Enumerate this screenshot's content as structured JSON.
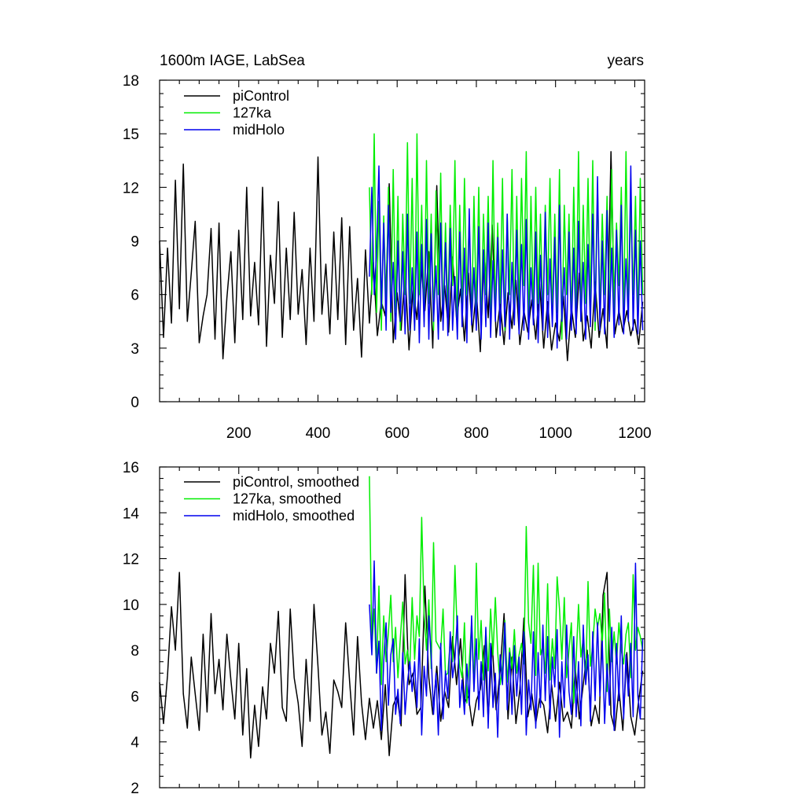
{
  "chart_data": [
    {
      "type": "line",
      "title_left": "1600m IAGE, LabSea",
      "title_right": "years",
      "xlabel": "",
      "ylabel": "",
      "xlim": [
        0,
        1225
      ],
      "ylim": [
        0,
        18
      ],
      "yticks": [
        0,
        3,
        6,
        9,
        12,
        15,
        18
      ],
      "xticks": [
        200,
        400,
        600,
        800,
        1000,
        1200
      ],
      "show_x_tick_labels": true,
      "legend_position": "top-left",
      "series": [
        {
          "name": "piControl",
          "color": "#000000",
          "x_start": 0,
          "x_step": 10,
          "values": [
            9.0,
            3.6,
            8.6,
            4.4,
            12.4,
            5.2,
            13.3,
            4.5,
            7.2,
            10.1,
            3.3,
            4.8,
            6.0,
            9.7,
            3.5,
            10.0,
            2.4,
            5.8,
            8.4,
            3.3,
            9.6,
            4.6,
            12.0,
            4.8,
            7.8,
            4.3,
            12.0,
            3.1,
            8.2,
            5.5,
            11.2,
            3.6,
            8.6,
            4.6,
            10.6,
            4.9,
            7.4,
            3.2,
            8.6,
            4.5,
            13.7,
            4.9,
            7.7,
            3.8,
            9.5,
            4.6,
            10.3,
            3.2,
            9.8,
            4.0,
            6.9,
            2.5,
            8.5,
            4.4,
            7.8,
            3.7,
            5.6,
            4.8,
            12.2,
            3.3,
            6.1,
            4.0,
            7.3,
            2.9,
            6.4,
            4.6,
            7.8,
            5.1,
            8.4,
            3.0,
            12.1,
            4.5,
            6.5,
            3.9,
            8.1,
            4.6,
            6.3,
            3.4,
            7.2,
            3.9,
            6.2,
            2.8,
            8.4,
            4.7,
            9.9,
            3.6,
            5.5,
            3.2,
            6.1,
            4.1,
            6.8,
            3.2,
            5.1,
            3.9,
            5.7,
            3.5,
            6.6,
            3.0,
            5.6,
            2.9,
            4.4,
            3.4,
            5.9,
            2.3,
            5.3,
            3.6,
            7.2,
            3.4,
            4.8,
            3.0,
            6.7,
            3.6,
            5.2,
            3.0,
            14.0,
            3.8,
            5.1,
            3.9,
            5.1,
            3.7,
            4.6,
            3.2,
            5.6
          ]
        },
        {
          "name": "127ka",
          "color": "#00ee00",
          "x_start": 530,
          "x_step": 6,
          "values": [
            12.0,
            6.0,
            15.0,
            5.0,
            11.2,
            4.0,
            10.4,
            5.2,
            12.0,
            4.5,
            13.0,
            5.0,
            11.5,
            4.0,
            10.5,
            6.0,
            14.5,
            5.5,
            12.5,
            4.0,
            15.0,
            6.0,
            11.0,
            4.5,
            13.5,
            5.5,
            10.5,
            4.0,
            11.8,
            6.0,
            12.8,
            4.5,
            10.0,
            5.0,
            11.0,
            6.5,
            13.5,
            4.5,
            11.0,
            5.0,
            12.5,
            6.0,
            10.2,
            4.5,
            11.5,
            5.0,
            12.0,
            4.0,
            10.5,
            6.0,
            11.5,
            4.5,
            13.5,
            5.0,
            10.0,
            5.5,
            12.5,
            4.0,
            10.5,
            6.0,
            13.0,
            4.5,
            11.5,
            5.0,
            12.5,
            6.5,
            14.0,
            4.0,
            11.5,
            5.0,
            12.0,
            5.5,
            10.5,
            4.5,
            11.0,
            6.0,
            12.5,
            4.5,
            10.5,
            5.0,
            13.0,
            3.5,
            11.0,
            6.0,
            10.5,
            4.5,
            12.0,
            5.0,
            14.0,
            4.5,
            11.0,
            5.5,
            12.5,
            5.0,
            13.5,
            4.0,
            12.0,
            5.0,
            10.5,
            6.0,
            11.5,
            4.5,
            13.0,
            5.0,
            10.0,
            6.5,
            12.0,
            4.5,
            14.0,
            5.0,
            11.0,
            6.0,
            11.5,
            4.5,
            12.5,
            6.0
          ]
        },
        {
          "name": "midHolo",
          "color": "#0000ee",
          "x_start": 530,
          "x_step": 6,
          "values": [
            7.0,
            12.0,
            6.0,
            8.3,
            13.2,
            5.2,
            10.0,
            4.0,
            11.0,
            5.0,
            7.8,
            3.5,
            9.0,
            4.5,
            8.4,
            3.8,
            10.5,
            4.0,
            7.5,
            4.0,
            9.5,
            3.3,
            8.8,
            4.2,
            10.2,
            3.5,
            9.4,
            4.5,
            7.6,
            3.5,
            10.0,
            4.0,
            8.9,
            3.7,
            9.7,
            4.0,
            7.0,
            3.5,
            9.5,
            4.2,
            8.6,
            3.3,
            10.8,
            4.3,
            7.5,
            4.0,
            9.8,
            3.5,
            8.5,
            4.2,
            10.0,
            3.6,
            7.9,
            4.5,
            9.2,
            3.7,
            8.5,
            4.2,
            10.5,
            3.5,
            7.8,
            4.3,
            9.6,
            3.8,
            8.8,
            4.0,
            10.2,
            3.5,
            7.5,
            4.3,
            9.5,
            3.3,
            8.2,
            4.0,
            10.6,
            3.6,
            8.0,
            4.2,
            9.2,
            3.0,
            11.0,
            4.5,
            7.5,
            3.5,
            9.5,
            4.0,
            8.6,
            3.8,
            10.1,
            4.5,
            7.8,
            3.5,
            8.8,
            4.2,
            10.5,
            4.5,
            12.6,
            4.0,
            9.0,
            3.8,
            10.7,
            4.5,
            8.6,
            3.6,
            9.6,
            4.3,
            11.0,
            3.8,
            8.0,
            4.5,
            13.2,
            4.0,
            9.6,
            3.8,
            9.0,
            4.0
          ]
        }
      ]
    },
    {
      "type": "line",
      "title_left": "",
      "title_right": "",
      "xlabel": "",
      "ylabel": "",
      "xlim": [
        0,
        1225
      ],
      "ylim": [
        2,
        16
      ],
      "yticks": [
        2,
        4,
        6,
        8,
        10,
        12,
        14,
        16
      ],
      "xticks": [
        200,
        400,
        600,
        800,
        1000,
        1200
      ],
      "show_x_tick_labels": false,
      "legend_position": "top-left",
      "series": [
        {
          "name": "piControl, smoothed",
          "color": "#000000",
          "x_start": 0,
          "x_step": 10,
          "values": [
            6.6,
            4.8,
            6.9,
            9.9,
            8.0,
            11.4,
            6.1,
            4.6,
            7.7,
            6.1,
            4.5,
            8.7,
            5.3,
            9.6,
            6.1,
            7.6,
            5.4,
            8.7,
            6.7,
            5.0,
            8.3,
            4.3,
            7.2,
            3.3,
            5.6,
            3.8,
            6.4,
            5.0,
            8.3,
            7.0,
            9.7,
            5.5,
            4.9,
            9.8,
            6.8,
            5.7,
            3.8,
            7.6,
            4.9,
            10.0,
            7.3,
            4.3,
            5.3,
            3.5,
            6.7,
            6.2,
            5.5,
            9.2,
            6.6,
            4.3,
            8.6,
            5.7,
            4.1,
            5.9,
            4.6,
            5.8,
            4.1,
            6.5,
            3.4,
            5.6,
            6.0,
            4.7,
            11.3,
            6.5,
            7.0,
            5.2,
            5.5,
            10.8,
            6.8,
            5.2,
            7.3,
            4.9,
            6.2,
            5.5,
            8.6,
            6.5,
            8.5,
            5.7,
            6.0,
            4.7,
            5.8,
            6.3,
            8.2,
            5.0,
            8.3,
            5.4,
            7.1,
            9.6,
            5.0,
            7.7,
            4.8,
            6.3,
            9.4,
            5.1,
            6.1,
            4.8,
            5.9,
            5.6,
            4.4,
            6.5,
            4.9,
            6.6,
            4.9,
            5.3,
            4.6,
            7.2,
            5.0,
            6.5,
            8.0,
            4.7,
            5.6,
            4.8,
            10.4,
            11.4,
            5.2,
            4.5,
            6.3,
            4.5,
            7.9,
            5.1,
            4.3,
            5.8,
            7.1
          ]
        },
        {
          "name": "127ka, smoothed",
          "color": "#00ee00",
          "x_start": 530,
          "x_step": 6,
          "values": [
            15.6,
            8.2,
            9.8,
            7.0,
            10.8,
            6.5,
            9.5,
            7.5,
            8.8,
            10.4,
            7.5,
            9.0,
            6.8,
            8.5,
            10.1,
            7.4,
            8.0,
            7.2,
            10.3,
            7.6,
            9.5,
            8.6,
            13.8,
            9.6,
            8.0,
            10.2,
            7.2,
            12.7,
            8.4,
            8.2,
            8.0,
            9.8,
            6.9,
            7.0,
            8.4,
            7.5,
            11.7,
            8.5,
            7.3,
            6.8,
            9.2,
            5.7,
            7.5,
            9.2,
            6.3,
            11.8,
            7.6,
            9.3,
            6.7,
            8.9,
            7.1,
            9.8,
            7.8,
            10.3,
            7.9,
            6.5,
            7.3,
            9.3,
            6.6,
            8.1,
            7.2,
            8.9,
            7.0,
            7.8,
            8.3,
            7.4,
            13.4,
            9.2,
            8.3,
            11.7,
            6.9,
            11.8,
            7.8,
            8.2,
            7.0,
            10.9,
            6.7,
            8.5,
            7.2,
            11.2,
            9.8,
            7.6,
            10.3,
            6.8,
            8.0,
            9.2,
            5.7,
            7.6,
            10.0,
            7.7,
            8.5,
            6.6,
            11.0,
            7.3,
            8.2,
            9.8,
            9.0,
            9.6,
            8.3,
            10.5,
            6.2,
            9.8,
            7.5,
            8.8,
            7.4,
            9.2,
            8.0,
            7.4,
            8.7,
            9.2,
            6.8,
            11.3,
            8.0,
            9.0,
            8.6,
            8.0
          ]
        },
        {
          "name": "midHolo, smoothed",
          "color": "#0000ee",
          "x_start": 530,
          "x_step": 6,
          "values": [
            10.0,
            7.8,
            11.9,
            7.0,
            8.4,
            4.5,
            7.5,
            9.2,
            5.6,
            7.8,
            8.5,
            5.2,
            6.3,
            4.8,
            7.9,
            5.2,
            6.6,
            7.5,
            6.2,
            7.5,
            5.5,
            8.5,
            4.3,
            7.3,
            6.0,
            9.5,
            7.8,
            5.2,
            7.0,
            4.3,
            8.3,
            5.0,
            7.1,
            5.9,
            8.8,
            6.8,
            7.6,
            9.5,
            5.5,
            6.7,
            5.2,
            7.4,
            5.6,
            9.5,
            6.2,
            8.5,
            5.4,
            7.5,
            5.1,
            9.0,
            4.6,
            8.3,
            5.5,
            7.0,
            4.2,
            7.8,
            6.5,
            9.2,
            5.4,
            7.9,
            5.2,
            8.2,
            6.0,
            7.7,
            5.2,
            8.8,
            4.3,
            6.7,
            5.4,
            8.8,
            4.6,
            7.9,
            5.5,
            9.1,
            5.8,
            8.6,
            5.0,
            7.7,
            6.4,
            8.9,
            4.2,
            7.5,
            5.5,
            9.1,
            6.2,
            5.2,
            8.6,
            5.1,
            7.5,
            4.7,
            9.1,
            6.5,
            7.8,
            4.9,
            8.8,
            5.8,
            9.2,
            6.0,
            8.4,
            4.8,
            7.4,
            5.6,
            9.0,
            4.5,
            8.3,
            5.8,
            9.5,
            5.0,
            7.8,
            6.0,
            8.3,
            5.1,
            11.8,
            6.0,
            5.0,
            8.5
          ]
        }
      ]
    }
  ]
}
